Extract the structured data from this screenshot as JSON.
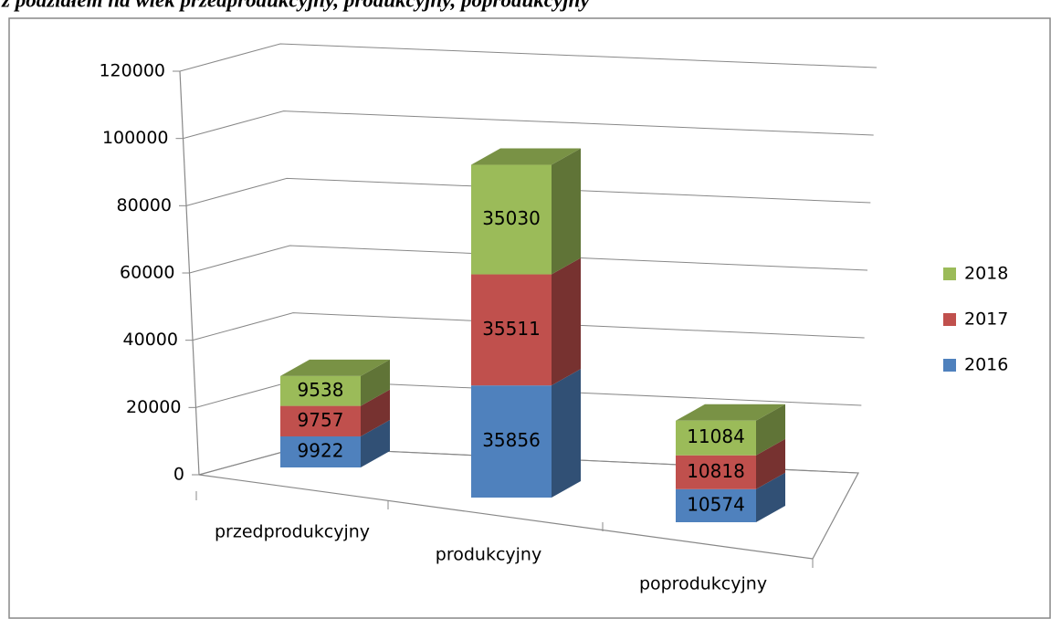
{
  "chart_data": {
    "type": "bar3d_stacked",
    "title": "z podziałem na wiek przedprodukcyjny, produkcyjny, poprodukcyjny",
    "categories": [
      "przedprodukcyjny",
      "produkcyjny",
      "poprodukcyjny"
    ],
    "series": [
      {
        "name": "2016",
        "color": "#4f81bd",
        "values": [
          9922,
          35856,
          10574
        ]
      },
      {
        "name": "2017",
        "color": "#c0504d",
        "values": [
          9757,
          35511,
          10818
        ]
      },
      {
        "name": "2018",
        "color": "#9bbb59",
        "values": [
          9538,
          35030,
          11084
        ]
      }
    ],
    "ylim": [
      0,
      120000
    ],
    "yticks": [
      0,
      20000,
      40000,
      60000,
      80000,
      100000,
      120000
    ],
    "grid": true,
    "legend": "right"
  }
}
